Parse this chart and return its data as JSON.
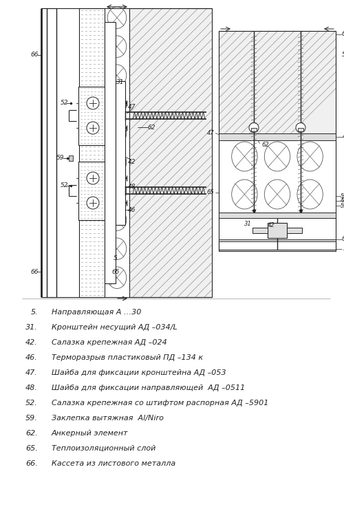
{
  "bg_color": "#ffffff",
  "line_color": "#222222",
  "legend_items": [
    [
      "5.",
      "Направляющая А …30"
    ],
    [
      "31.",
      "Кронштейн несущий АД –034/L"
    ],
    [
      "42.",
      "Салазка крепежная АД –024"
    ],
    [
      "46.",
      "Терморазрыв пластиковый ПД –134 к"
    ],
    [
      "47.",
      "Шайба для фиксации кронштейна АД –053"
    ],
    [
      "48.",
      "Шайба для фиксации направляющей  АД –0511"
    ],
    [
      "52.",
      "Салазка крепежная со штифтом распорная АД –5901"
    ],
    [
      "59.",
      "Заклепка вытяжная  Al/Niro"
    ],
    [
      "62.",
      "Анкерный элемент"
    ],
    [
      "65.",
      "Теплоизоляционный слой"
    ],
    [
      "66.",
      "Кассета из листового металла"
    ]
  ]
}
